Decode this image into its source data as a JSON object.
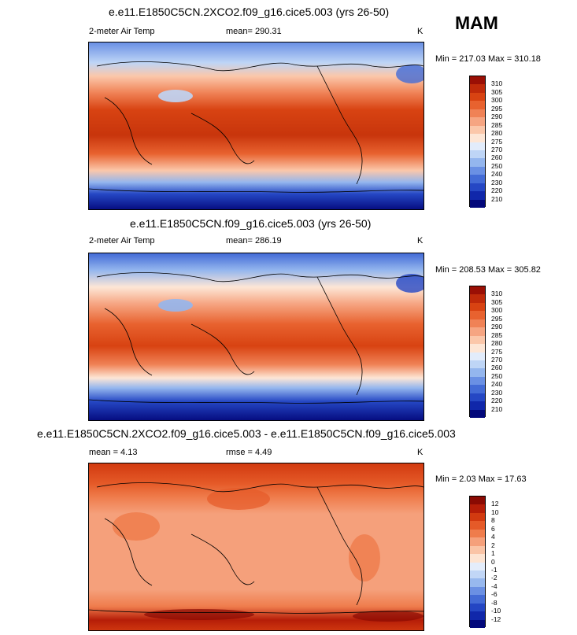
{
  "season": "MAM",
  "panels": [
    {
      "title": "e.e11.E1850C5CN.2XCO2.f09_g16.cice5.003 (yrs 26-50)",
      "left_label": "2-meter Air Temp",
      "center_label": "mean= 290.31",
      "right_label": "",
      "units": "K",
      "minmax": "Min = 217.03 Max = 310.18",
      "colorbar": {
        "labels": [
          "310",
          "305",
          "300",
          "295",
          "290",
          "285",
          "280",
          "275",
          "270",
          "260",
          "250",
          "240",
          "230",
          "220",
          "210"
        ],
        "colors": [
          "#9a0f05",
          "#bf2a0a",
          "#d84312",
          "#e8622f",
          "#f08256",
          "#f6a582",
          "#fbc7aa",
          "#fde6d6",
          "#e2ecfb",
          "#bed5f6",
          "#94b6ee",
          "#6a90e4",
          "#436bd6",
          "#2547c4",
          "#1027aa",
          "#03087b"
        ]
      }
    },
    {
      "title": "e.e11.E1850C5CN.f09_g16.cice5.003 (yrs 26-50)",
      "left_label": "2-meter Air Temp",
      "center_label": "mean= 286.19",
      "right_label": "",
      "units": "K",
      "minmax": "Min = 208.53 Max = 305.82",
      "colorbar": {
        "labels": [
          "310",
          "305",
          "300",
          "295",
          "290",
          "285",
          "280",
          "275",
          "270",
          "260",
          "250",
          "240",
          "230",
          "220",
          "210"
        ],
        "colors": [
          "#9a0f05",
          "#bf2a0a",
          "#d84312",
          "#e8622f",
          "#f08256",
          "#f6a582",
          "#fbc7aa",
          "#fde6d6",
          "#e2ecfb",
          "#bed5f6",
          "#94b6ee",
          "#6a90e4",
          "#436bd6",
          "#2547c4",
          "#1027aa",
          "#03087b"
        ]
      }
    },
    {
      "title": "e.e11.E1850C5CN.2XCO2.f09_g16.cice5.003 - e.e11.E1850C5CN.f09_g16.cice5.003",
      "left_label": "mean =  4.13",
      "center_label": "rmse =  4.49",
      "right_label": "",
      "units": "K",
      "minmax": "Min =  2.03 Max =  17.63",
      "colorbar": {
        "labels": [
          "12",
          "10",
          "8",
          "6",
          "4",
          "2",
          "1",
          "0",
          "-1",
          "-2",
          "-4",
          "-6",
          "-8",
          "-10",
          "-12"
        ],
        "colors": [
          "#8a0a03",
          "#b51d08",
          "#d23a10",
          "#e55a28",
          "#ef7c4c",
          "#f5a07b",
          "#fac4a6",
          "#fde4d2",
          "#e4edfb",
          "#c1d6f6",
          "#97b8ee",
          "#6b90e3",
          "#446bd5",
          "#2446c3",
          "#1027aa",
          "#03087b"
        ]
      }
    }
  ]
}
